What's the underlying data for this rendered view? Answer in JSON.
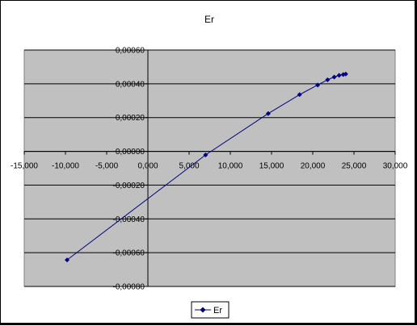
{
  "chart_data": {
    "type": "scatter",
    "title": "Er",
    "xlabel": "",
    "ylabel": "",
    "xlim": [
      -15000,
      30000
    ],
    "ylim": [
      -0.0008,
      0.0006
    ],
    "xticks": [
      "-15,000",
      "-10,000",
      "-5,000",
      "0,000",
      "5,000",
      "10,000",
      "15,000",
      "20,000",
      "25,000",
      "30,000"
    ],
    "yticks": [
      "0,00060",
      "0,00040",
      "0,00020",
      "0,00000",
      "-0,00020",
      "-0,00040",
      "-0,00060",
      "-0,00080"
    ],
    "grid": "horizontal",
    "legend": "bottom",
    "series": [
      {
        "name": "Er",
        "color": "#000080",
        "marker": "diamond",
        "x": [
          -9800,
          7000,
          14600,
          18400,
          20600,
          21800,
          22600,
          23200,
          23700,
          24000
        ],
        "y": [
          -0.000643,
          -2.1e-05,
          0.000224,
          0.000336,
          0.000393,
          0.000424,
          0.00044,
          0.00045,
          0.000455,
          0.000458
        ]
      }
    ]
  },
  "colors": {
    "plot_background": "#C0C0C0",
    "series_line": "#000080",
    "gridline": "#000000"
  }
}
